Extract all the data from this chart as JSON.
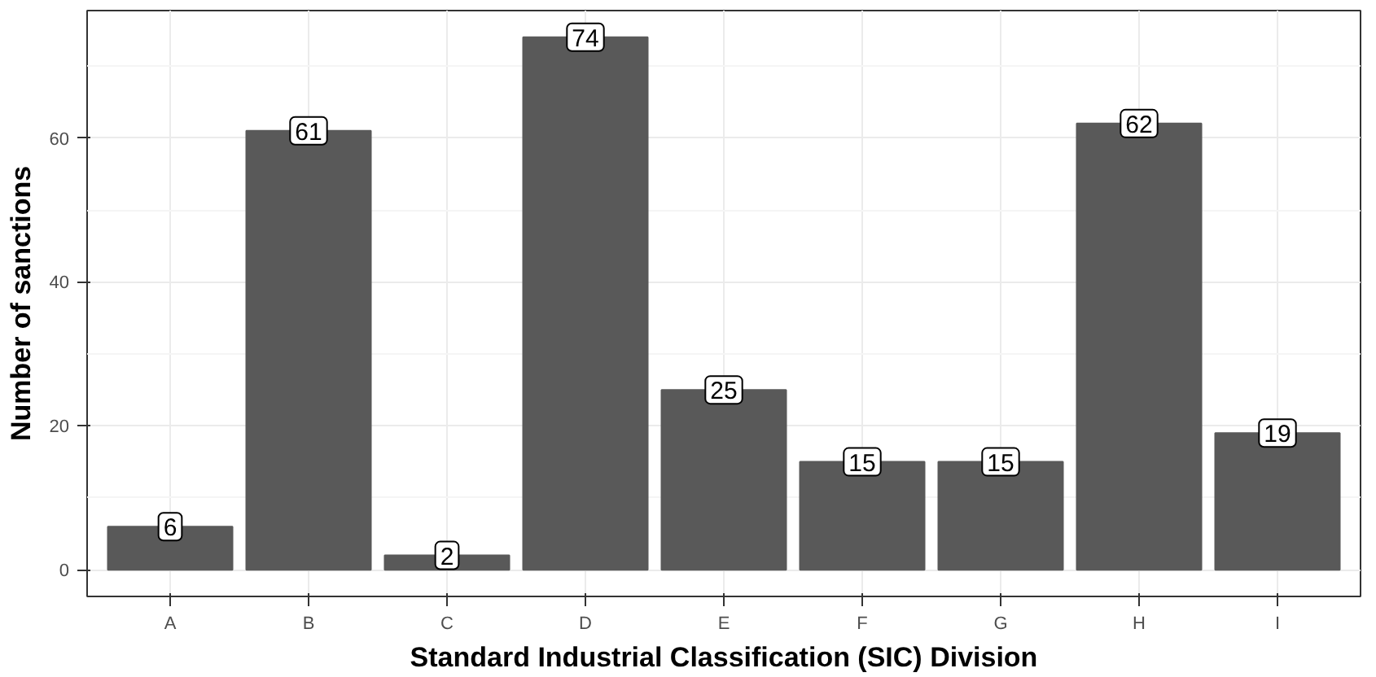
{
  "chart_data": {
    "type": "bar",
    "xlabel": "Standard Industrial Classification (SIC) Division",
    "ylabel": "Number of sanctions",
    "categories": [
      "A",
      "B",
      "C",
      "D",
      "E",
      "F",
      "G",
      "H",
      "I"
    ],
    "values": [
      6,
      61,
      2,
      74,
      25,
      15,
      15,
      62,
      19
    ],
    "color": "#595959",
    "ylim": [
      -3.7,
      77.7
    ],
    "yticks": [
      0,
      20,
      40,
      60
    ],
    "grid": true,
    "data_labels": true
  }
}
